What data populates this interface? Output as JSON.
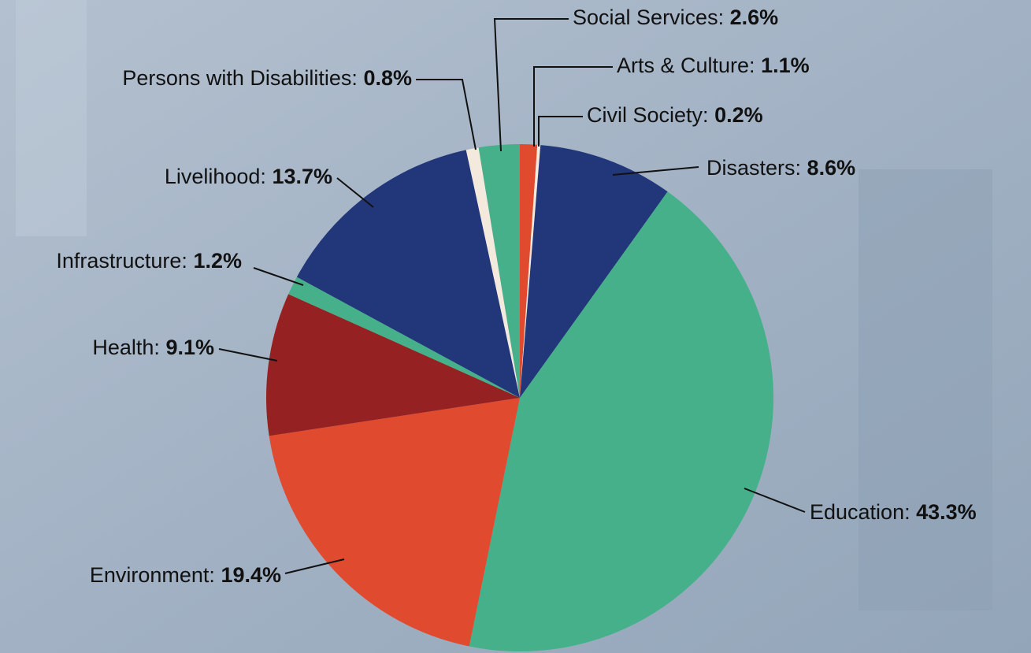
{
  "chart_data": {
    "type": "pie",
    "categories": [
      "Arts & Culture:",
      "Civil Society:",
      "Disasters:",
      "Education:",
      "Environment:",
      "Health:",
      "Infrastructure:",
      "Livelihood:",
      "Persons with Disabilities:",
      "Social Services:"
    ],
    "values": [
      1.1,
      0.2,
      8.6,
      43.3,
      19.4,
      9.1,
      1.2,
      13.7,
      0.8,
      2.6
    ],
    "value_labels": [
      "1.1%",
      "0.2%",
      "8.6%",
      "43.3%",
      "19.4%",
      "9.1%",
      "1.2%",
      "13.7%",
      "0.8%",
      "2.6%"
    ],
    "colors": [
      "#e04a2f",
      "#f3e9dc",
      "#22367a",
      "#45b08a",
      "#e04a2f",
      "#952122",
      "#45b08a",
      "#22367a",
      "#f3e9dc",
      "#45b08a"
    ]
  }
}
